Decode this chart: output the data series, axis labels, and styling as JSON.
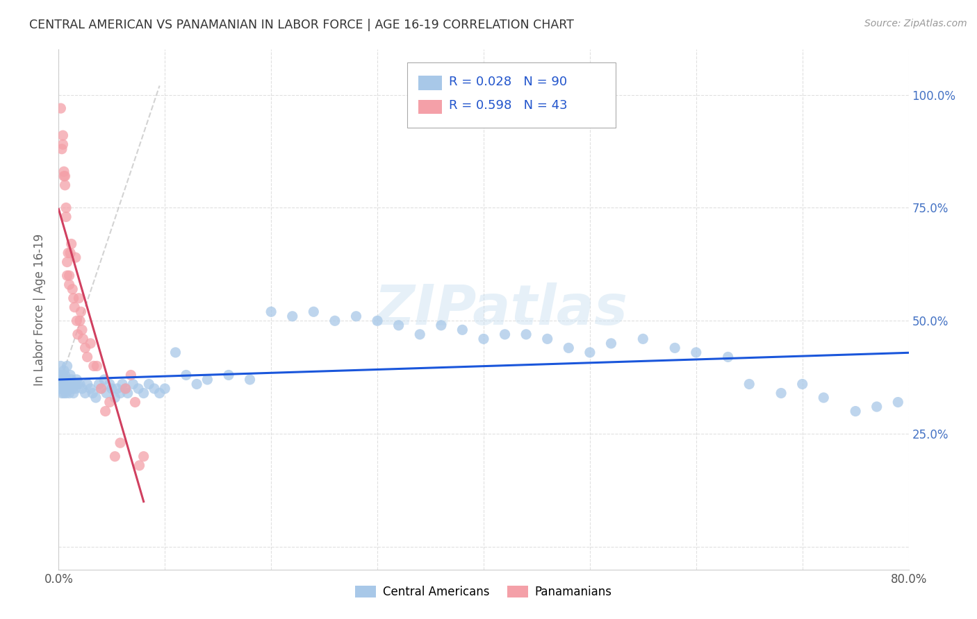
{
  "title": "CENTRAL AMERICAN VS PANAMANIAN IN LABOR FORCE | AGE 16-19 CORRELATION CHART",
  "source": "Source: ZipAtlas.com",
  "ylabel": "In Labor Force | Age 16-19",
  "xlim": [
    0.0,
    0.8
  ],
  "ylim": [
    -0.05,
    1.1
  ],
  "x_ticks": [
    0.0,
    0.1,
    0.2,
    0.3,
    0.4,
    0.5,
    0.6,
    0.7,
    0.8
  ],
  "x_tick_labels": [
    "0.0%",
    "",
    "",
    "",
    "",
    "",
    "",
    "",
    "80.0%"
  ],
  "y_ticks": [
    0.0,
    0.25,
    0.5,
    0.75,
    1.0
  ],
  "y_tick_labels_right": [
    "",
    "25.0%",
    "50.0%",
    "75.0%",
    "100.0%"
  ],
  "background_color": "#ffffff",
  "grid_color": "#dddddd",
  "watermark": "ZIPatlas",
  "blue_color": "#a8c8e8",
  "pink_color": "#f4a0a8",
  "trend_blue": "#1a56db",
  "trend_pink": "#d04060",
  "trend_gray": "#c8c8c8",
  "legend_R1": "0.028",
  "legend_N1": "90",
  "legend_R2": "0.598",
  "legend_N2": "43",
  "blue_x": [
    0.001,
    0.001,
    0.002,
    0.002,
    0.003,
    0.003,
    0.004,
    0.004,
    0.005,
    0.005,
    0.005,
    0.005,
    0.006,
    0.006,
    0.007,
    0.007,
    0.008,
    0.008,
    0.009,
    0.01,
    0.01,
    0.011,
    0.012,
    0.013,
    0.013,
    0.014,
    0.015,
    0.016,
    0.017,
    0.018,
    0.02,
    0.022,
    0.025,
    0.027,
    0.03,
    0.032,
    0.035,
    0.038,
    0.04,
    0.043,
    0.045,
    0.048,
    0.05,
    0.053,
    0.055,
    0.058,
    0.06,
    0.063,
    0.065,
    0.07,
    0.075,
    0.08,
    0.085,
    0.09,
    0.095,
    0.1,
    0.11,
    0.12,
    0.13,
    0.14,
    0.16,
    0.18,
    0.2,
    0.22,
    0.24,
    0.26,
    0.28,
    0.3,
    0.32,
    0.34,
    0.36,
    0.38,
    0.4,
    0.42,
    0.44,
    0.46,
    0.48,
    0.5,
    0.52,
    0.55,
    0.58,
    0.6,
    0.63,
    0.65,
    0.68,
    0.7,
    0.72,
    0.75,
    0.77,
    0.79
  ],
  "blue_y": [
    0.35,
    0.38,
    0.36,
    0.4,
    0.37,
    0.34,
    0.38,
    0.35,
    0.36,
    0.39,
    0.34,
    0.37,
    0.38,
    0.35,
    0.37,
    0.34,
    0.4,
    0.36,
    0.35,
    0.36,
    0.34,
    0.38,
    0.37,
    0.35,
    0.36,
    0.34,
    0.36,
    0.35,
    0.37,
    0.36,
    0.36,
    0.35,
    0.34,
    0.36,
    0.35,
    0.34,
    0.33,
    0.36,
    0.35,
    0.37,
    0.34,
    0.36,
    0.35,
    0.33,
    0.35,
    0.34,
    0.36,
    0.35,
    0.34,
    0.36,
    0.35,
    0.34,
    0.36,
    0.35,
    0.34,
    0.35,
    0.43,
    0.38,
    0.36,
    0.37,
    0.38,
    0.37,
    0.52,
    0.51,
    0.52,
    0.5,
    0.51,
    0.5,
    0.49,
    0.47,
    0.49,
    0.48,
    0.46,
    0.47,
    0.47,
    0.46,
    0.44,
    0.43,
    0.45,
    0.46,
    0.44,
    0.43,
    0.42,
    0.36,
    0.34,
    0.36,
    0.33,
    0.3,
    0.31,
    0.32
  ],
  "pink_x": [
    0.002,
    0.003,
    0.004,
    0.004,
    0.005,
    0.005,
    0.006,
    0.006,
    0.007,
    0.007,
    0.008,
    0.008,
    0.009,
    0.01,
    0.01,
    0.011,
    0.012,
    0.013,
    0.014,
    0.015,
    0.016,
    0.017,
    0.018,
    0.019,
    0.02,
    0.021,
    0.022,
    0.023,
    0.025,
    0.027,
    0.03,
    0.033,
    0.036,
    0.04,
    0.044,
    0.048,
    0.053,
    0.058,
    0.063,
    0.068,
    0.072,
    0.076,
    0.08
  ],
  "pink_y": [
    0.97,
    0.88,
    0.89,
    0.91,
    0.82,
    0.83,
    0.8,
    0.82,
    0.73,
    0.75,
    0.6,
    0.63,
    0.65,
    0.6,
    0.58,
    0.65,
    0.67,
    0.57,
    0.55,
    0.53,
    0.64,
    0.5,
    0.47,
    0.55,
    0.5,
    0.52,
    0.48,
    0.46,
    0.44,
    0.42,
    0.45,
    0.4,
    0.4,
    0.35,
    0.3,
    0.32,
    0.2,
    0.23,
    0.35,
    0.38,
    0.32,
    0.18,
    0.2
  ],
  "gray_line_x": [
    0.0,
    0.095
  ],
  "gray_line_y": [
    0.355,
    1.02
  ]
}
